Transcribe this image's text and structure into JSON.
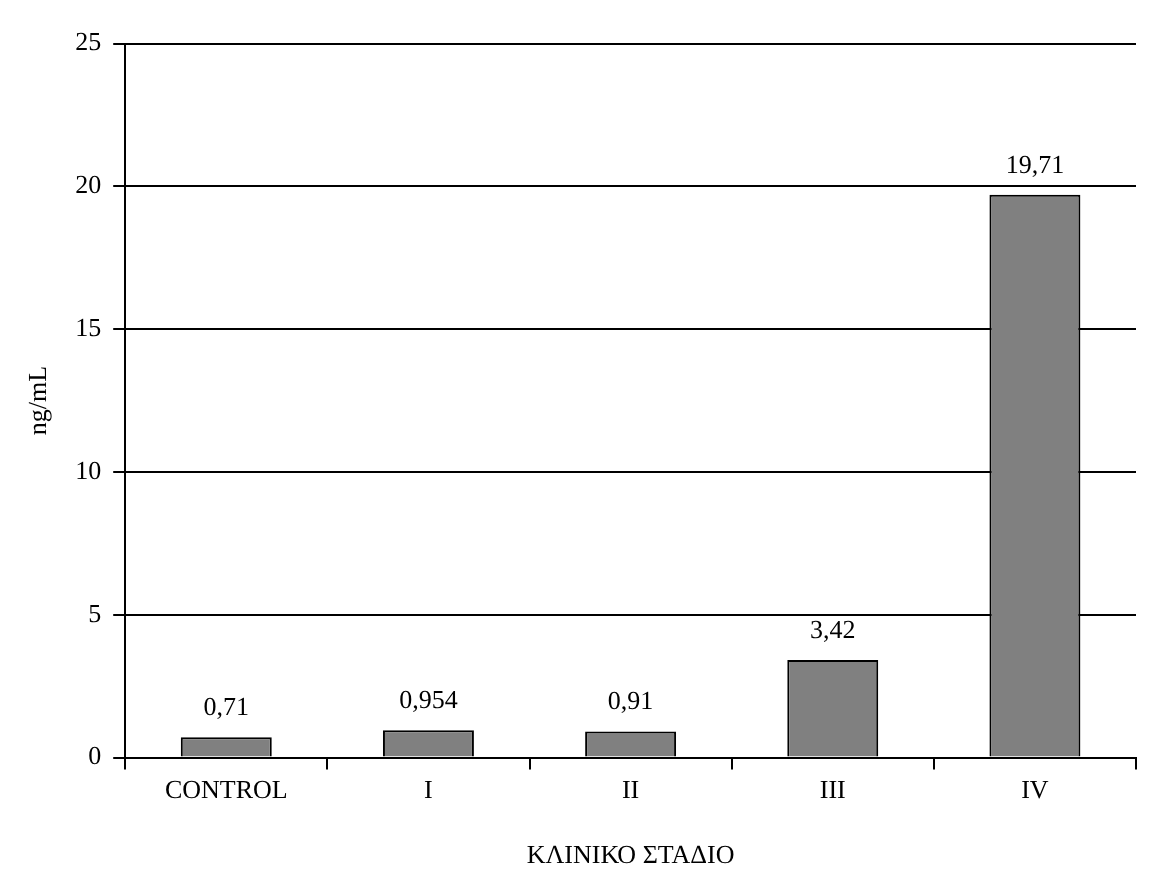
{
  "chart_data": {
    "type": "bar",
    "xlabel": "ΚΛΙΝΙΚΟ ΣΤΑΔΙΟ",
    "ylabel": "ng/mL",
    "categories": [
      "CONTROL",
      "I",
      "II",
      "III",
      "IV"
    ],
    "values": [
      0.71,
      0.954,
      0.91,
      3.42,
      19.71
    ],
    "value_labels": [
      "0,71",
      "0,954",
      "0,91",
      "3,42",
      "19,71"
    ],
    "color": "#808080",
    "ylim": [
      0,
      25
    ],
    "yticks": [
      0,
      5,
      10,
      15,
      20,
      25
    ],
    "grid": "y",
    "legend": false
  }
}
